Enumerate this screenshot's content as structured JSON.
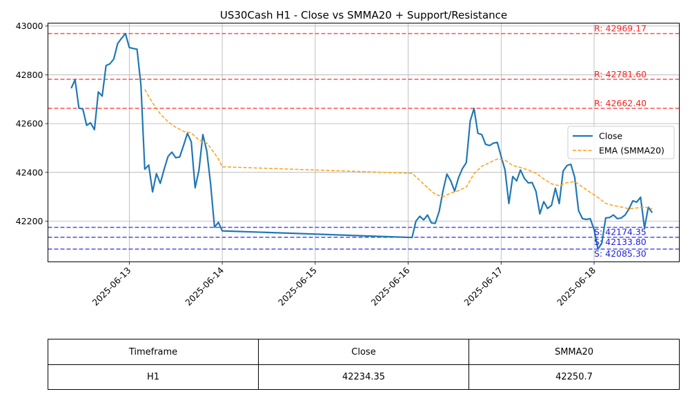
{
  "chart_data": {
    "type": "line",
    "title": "US30Cash H1 - Close vs SMMA20 + Support/Resistance",
    "xlabel": "",
    "ylabel": "",
    "x_ticks": [
      "2025-06-13",
      "2025-06-14",
      "2025-06-15",
      "2025-06-16",
      "2025-06-17",
      "2025-06-18"
    ],
    "y_ticks": [
      42200,
      42400,
      42600,
      42800,
      43000
    ],
    "xlim": [
      "2025-06-12 03:00",
      "2025-06-18 22:00"
    ],
    "ylim": [
      42033,
      43012
    ],
    "grid": true,
    "legend_position": "center-right",
    "colors": {
      "close": "#1f77b4",
      "smma": "#ff9f0e",
      "resistance": "#ff2020",
      "support": "#2020e0"
    },
    "series": [
      {
        "name": "Close",
        "style": "solid",
        "points": [
          [
            "2025-06-12 09:00",
            42745
          ],
          [
            "2025-06-12 10:00",
            42780
          ],
          [
            "2025-06-12 11:00",
            42663
          ],
          [
            "2025-06-12 12:00",
            42660
          ],
          [
            "2025-06-12 13:00",
            42593
          ],
          [
            "2025-06-12 14:00",
            42603
          ],
          [
            "2025-06-12 15:00",
            42575
          ],
          [
            "2025-06-12 16:00",
            42730
          ],
          [
            "2025-06-12 17:00",
            42713
          ],
          [
            "2025-06-12 18:00",
            42838
          ],
          [
            "2025-06-12 19:00",
            42845
          ],
          [
            "2025-06-12 20:00",
            42865
          ],
          [
            "2025-06-12 21:00",
            42928
          ],
          [
            "2025-06-12 22:00",
            42950
          ],
          [
            "2025-06-12 23:00",
            42969
          ],
          [
            "2025-06-13 00:00",
            42912
          ],
          [
            "2025-06-13 01:00",
            42908
          ],
          [
            "2025-06-13 02:00",
            42905
          ],
          [
            "2025-06-13 03:00",
            42760
          ],
          [
            "2025-06-13 04:00",
            42413
          ],
          [
            "2025-06-13 05:00",
            42430
          ],
          [
            "2025-06-13 06:00",
            42320
          ],
          [
            "2025-06-13 07:00",
            42395
          ],
          [
            "2025-06-13 08:00",
            42355
          ],
          [
            "2025-06-13 09:00",
            42413
          ],
          [
            "2025-06-13 10:00",
            42465
          ],
          [
            "2025-06-13 11:00",
            42483
          ],
          [
            "2025-06-13 12:00",
            42460
          ],
          [
            "2025-06-13 13:00",
            42463
          ],
          [
            "2025-06-13 14:00",
            42510
          ],
          [
            "2025-06-13 15:00",
            42560
          ],
          [
            "2025-06-13 16:00",
            42525
          ],
          [
            "2025-06-13 17:00",
            42337
          ],
          [
            "2025-06-13 18:00",
            42410
          ],
          [
            "2025-06-13 19:00",
            42555
          ],
          [
            "2025-06-13 20:00",
            42487
          ],
          [
            "2025-06-13 21:00",
            42350
          ],
          [
            "2025-06-13 22:00",
            42175
          ],
          [
            "2025-06-13 23:00",
            42195
          ],
          [
            "2025-06-14 00:00",
            42160
          ],
          [
            "2025-06-16 01:00",
            42133
          ],
          [
            "2025-06-16 02:00",
            42200
          ],
          [
            "2025-06-16 03:00",
            42220
          ],
          [
            "2025-06-16 04:00",
            42205
          ],
          [
            "2025-06-16 05:00",
            42225
          ],
          [
            "2025-06-16 06:00",
            42193
          ],
          [
            "2025-06-16 07:00",
            42191
          ],
          [
            "2025-06-16 08:00",
            42240
          ],
          [
            "2025-06-16 09:00",
            42325
          ],
          [
            "2025-06-16 10:00",
            42393
          ],
          [
            "2025-06-16 11:00",
            42365
          ],
          [
            "2025-06-16 12:00",
            42323
          ],
          [
            "2025-06-16 13:00",
            42378
          ],
          [
            "2025-06-16 14:00",
            42415
          ],
          [
            "2025-06-16 15:00",
            42440
          ],
          [
            "2025-06-16 16:00",
            42610
          ],
          [
            "2025-06-16 17:00",
            42662
          ],
          [
            "2025-06-16 18:00",
            42560
          ],
          [
            "2025-06-16 19:00",
            42555
          ],
          [
            "2025-06-16 20:00",
            42515
          ],
          [
            "2025-06-16 21:00",
            42510
          ],
          [
            "2025-06-16 22:00",
            42520
          ],
          [
            "2025-06-16 23:00",
            42523
          ],
          [
            "2025-06-17 00:00",
            42465
          ],
          [
            "2025-06-17 01:00",
            42410
          ],
          [
            "2025-06-17 02:00",
            42272
          ],
          [
            "2025-06-17 03:00",
            42383
          ],
          [
            "2025-06-17 04:00",
            42365
          ],
          [
            "2025-06-17 05:00",
            42410
          ],
          [
            "2025-06-17 06:00",
            42375
          ],
          [
            "2025-06-17 07:00",
            42357
          ],
          [
            "2025-06-17 08:00",
            42358
          ],
          [
            "2025-06-17 09:00",
            42322
          ],
          [
            "2025-06-17 10:00",
            42230
          ],
          [
            "2025-06-17 11:00",
            42280
          ],
          [
            "2025-06-17 12:00",
            42252
          ],
          [
            "2025-06-17 13:00",
            42265
          ],
          [
            "2025-06-17 14:00",
            42335
          ],
          [
            "2025-06-17 15:00",
            42272
          ],
          [
            "2025-06-17 16:00",
            42405
          ],
          [
            "2025-06-17 17:00",
            42428
          ],
          [
            "2025-06-17 18:00",
            42433
          ],
          [
            "2025-06-17 19:00",
            42380
          ],
          [
            "2025-06-17 20:00",
            42243
          ],
          [
            "2025-06-17 21:00",
            42210
          ],
          [
            "2025-06-17 22:00",
            42207
          ],
          [
            "2025-06-17 23:00",
            42210
          ],
          [
            "2025-06-18 00:00",
            42165
          ],
          [
            "2025-06-18 01:00",
            42085
          ],
          [
            "2025-06-18 02:00",
            42110
          ],
          [
            "2025-06-18 03:00",
            42213
          ],
          [
            "2025-06-18 04:00",
            42215
          ],
          [
            "2025-06-18 05:00",
            42225
          ],
          [
            "2025-06-18 06:00",
            42210
          ],
          [
            "2025-06-18 07:00",
            42213
          ],
          [
            "2025-06-18 08:00",
            42225
          ],
          [
            "2025-06-18 09:00",
            42250
          ],
          [
            "2025-06-18 10:00",
            42283
          ],
          [
            "2025-06-18 11:00",
            42278
          ],
          [
            "2025-06-18 12:00",
            42298
          ],
          [
            "2025-06-18 13:00",
            42172
          ],
          [
            "2025-06-18 14:00",
            42257
          ],
          [
            "2025-06-18 15:00",
            42234.35
          ]
        ]
      },
      {
        "name": "EMA (SMMA20)",
        "style": "dashed",
        "points": [
          [
            "2025-06-13 04:00",
            42740
          ],
          [
            "2025-06-13 06:00",
            42685
          ],
          [
            "2025-06-13 08:00",
            42640
          ],
          [
            "2025-06-13 10:00",
            42607
          ],
          [
            "2025-06-13 12:00",
            42585
          ],
          [
            "2025-06-13 14:00",
            42568
          ],
          [
            "2025-06-13 16:00",
            42562
          ],
          [
            "2025-06-13 18:00",
            42532
          ],
          [
            "2025-06-13 20:00",
            42520
          ],
          [
            "2025-06-13 21:00",
            42500
          ],
          [
            "2025-06-13 22:00",
            42478
          ],
          [
            "2025-06-13 23:00",
            42455
          ],
          [
            "2025-06-14 00:00",
            42423
          ],
          [
            "2025-06-16 01:00",
            42396
          ],
          [
            "2025-06-16 03:00",
            42367
          ],
          [
            "2025-06-16 05:00",
            42337
          ],
          [
            "2025-06-16 07:00",
            42310
          ],
          [
            "2025-06-16 09:00",
            42300
          ],
          [
            "2025-06-16 11:00",
            42315
          ],
          [
            "2025-06-16 13:00",
            42325
          ],
          [
            "2025-06-16 15:00",
            42340
          ],
          [
            "2025-06-16 17:00",
            42395
          ],
          [
            "2025-06-16 19:00",
            42425
          ],
          [
            "2025-06-16 21:00",
            42440
          ],
          [
            "2025-06-16 23:00",
            42455
          ],
          [
            "2025-06-17 01:00",
            42450
          ],
          [
            "2025-06-17 03:00",
            42428
          ],
          [
            "2025-06-17 05:00",
            42420
          ],
          [
            "2025-06-17 07:00",
            42410
          ],
          [
            "2025-06-17 09:00",
            42397
          ],
          [
            "2025-06-17 11:00",
            42373
          ],
          [
            "2025-06-17 13:00",
            42353
          ],
          [
            "2025-06-17 15:00",
            42345
          ],
          [
            "2025-06-17 17:00",
            42358
          ],
          [
            "2025-06-17 19:00",
            42362
          ],
          [
            "2025-06-17 21:00",
            42340
          ],
          [
            "2025-06-17 23:00",
            42318
          ],
          [
            "2025-06-18 01:00",
            42297
          ],
          [
            "2025-06-18 03:00",
            42273
          ],
          [
            "2025-06-18 05:00",
            42264
          ],
          [
            "2025-06-18 07:00",
            42258
          ],
          [
            "2025-06-18 09:00",
            42251
          ],
          [
            "2025-06-18 11:00",
            42254
          ],
          [
            "2025-06-18 13:00",
            42258
          ],
          [
            "2025-06-18 15:00",
            42250.7
          ]
        ]
      }
    ],
    "resistance_levels": [
      {
        "value": 42969.17,
        "label": "R: 42969.17"
      },
      {
        "value": 42781.6,
        "label": "R: 42781.60"
      },
      {
        "value": 42662.4,
        "label": "R: 42662.40"
      }
    ],
    "support_levels": [
      {
        "value": 42174.35,
        "label": "S: 42174.35"
      },
      {
        "value": 42133.8,
        "label": "S: 42133.80"
      },
      {
        "value": 42085.3,
        "label": "S: 42085.30"
      }
    ],
    "table": {
      "headers": [
        "Timeframe",
        "Close",
        "SMMA20"
      ],
      "rows": [
        [
          "H1",
          "42234.35",
          "42250.7"
        ]
      ]
    }
  }
}
